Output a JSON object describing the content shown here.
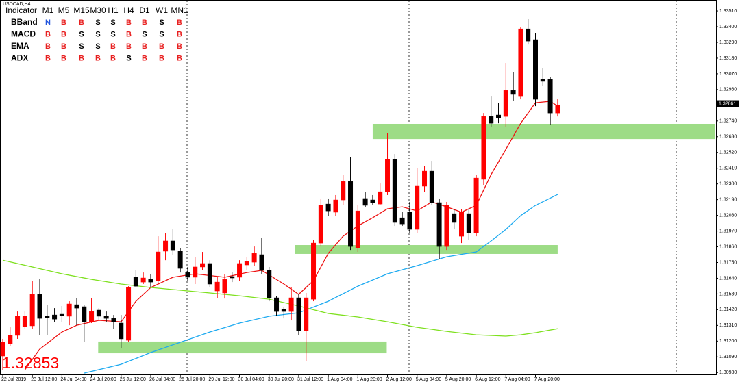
{
  "chart_data": {
    "type": "candlestick",
    "title": "USDCAD,H4",
    "price_display": "1.32853",
    "up_color": "#ff0000",
    "down_color": "#000000",
    "zone_color": "#9ddc86",
    "xlim": [
      -0.37,
      96.4
    ],
    "ylim": [
      1.30962,
      1.33563
    ],
    "yticks": [
      {
        "value": 1.3351,
        "label": "1.33510"
      },
      {
        "value": 1.334,
        "label": "1.33400"
      },
      {
        "value": 1.3329,
        "label": "1.33290"
      },
      {
        "value": 1.3318,
        "label": "1.33180"
      },
      {
        "value": 1.3307,
        "label": "1.33070"
      },
      {
        "value": 1.3296,
        "label": "1.32960"
      },
      {
        "value": 1.3274,
        "label": "1.32740"
      },
      {
        "value": 1.3263,
        "label": "1.32630"
      },
      {
        "value": 1.3252,
        "label": "1.32520"
      },
      {
        "value": 1.3241,
        "label": "1.32410"
      },
      {
        "value": 1.323,
        "label": "1.32300"
      },
      {
        "value": 1.3219,
        "label": "1.32190"
      },
      {
        "value": 1.3208,
        "label": "1.32080"
      },
      {
        "value": 1.3197,
        "label": "1.31970"
      },
      {
        "value": 1.3186,
        "label": "1.31860"
      },
      {
        "value": 1.3175,
        "label": "1.31750"
      },
      {
        "value": 1.3164,
        "label": "1.31640"
      },
      {
        "value": 1.3153,
        "label": "1.31530"
      },
      {
        "value": 1.3142,
        "label": "1.31420"
      },
      {
        "value": 1.3131,
        "label": "1.31310"
      },
      {
        "value": 1.312,
        "label": "1.31200"
      },
      {
        "value": 1.3109,
        "label": "1.31090"
      },
      {
        "value": 1.3098,
        "label": "1.30980"
      }
    ],
    "current_price": {
      "value": 1.32861,
      "label": "1.32861"
    },
    "categories": [
      "22 Jul 2019",
      null,
      null,
      null,
      "23 Jul 12:00",
      null,
      null,
      null,
      "24 Jul 04:00",
      null,
      null,
      null,
      "24 Jul 20:00",
      null,
      null,
      null,
      "25 Jul 12:00",
      null,
      null,
      null,
      "26 Jul 04:00",
      null,
      null,
      null,
      "26 Jul 20:00",
      null,
      null,
      null,
      "29 Jul 12:00",
      null,
      null,
      null,
      "30 Jul 04:00",
      null,
      null,
      null,
      "30 Jul 20:00",
      null,
      null,
      null,
      "31 Jul 12:00",
      null,
      null,
      null,
      "1 Aug 04:00",
      null,
      null,
      null,
      "1 Aug 20:00",
      null,
      null,
      null,
      "2 Aug 12:00",
      null,
      null,
      null,
      "5 Aug 04:00",
      null,
      null,
      null,
      "5 Aug 20:00",
      null,
      null,
      null,
      "6 Aug 12:00",
      null,
      null,
      null,
      "7 Aug 04:00",
      null,
      null,
      null,
      "7 Aug 20:00",
      null,
      null,
      null
    ],
    "ohlc": [
      [
        1.31096,
        1.31216,
        1.31,
        1.31192
      ],
      [
        1.31182,
        1.31297,
        1.31168,
        1.3124
      ],
      [
        1.3124,
        1.31407,
        1.31216,
        1.31374
      ],
      [
        1.31302,
        1.31407,
        1.31287,
        1.31374
      ],
      [
        1.31307,
        1.31623,
        1.31287,
        1.31527
      ],
      [
        1.31527,
        1.31637,
        1.3124,
        1.31359
      ],
      [
        1.31374,
        1.31455,
        1.3124,
        1.31364
      ],
      [
        1.31383,
        1.31431,
        1.31335,
        1.31354
      ],
      [
        1.31388,
        1.31446,
        1.31335,
        1.31378
      ],
      [
        1.31374,
        1.31479,
        1.31311,
        1.3146
      ],
      [
        1.31455,
        1.31503,
        1.31311,
        1.31431
      ],
      [
        1.31441,
        1.31455,
        1.31192,
        1.31335
      ],
      [
        1.31335,
        1.31503,
        1.31326,
        1.31407
      ],
      [
        1.31417,
        1.31431,
        1.31345,
        1.31374
      ],
      [
        1.31374,
        1.31407,
        1.31335,
        1.31359
      ],
      [
        1.31359,
        1.31383,
        1.31287,
        1.31335
      ],
      [
        1.31326,
        1.31383,
        1.31153,
        1.31216
      ],
      [
        1.31206,
        1.31584,
        1.31192,
        1.31575
      ],
      [
        1.31647,
        1.31695,
        1.31575,
        1.31584
      ],
      [
        1.31613,
        1.3168,
        1.31599,
        1.31642
      ],
      [
        1.31632,
        1.31671,
        1.31575,
        1.31613
      ],
      [
        1.31623,
        1.31934,
        1.31599,
        1.31824
      ],
      [
        1.31829,
        1.31958,
        1.31766,
        1.31901
      ],
      [
        1.31901,
        1.31982,
        1.31805,
        1.31838
      ],
      [
        1.31829,
        1.31853,
        1.3168,
        1.31709
      ],
      [
        1.3168,
        1.31719,
        1.31623,
        1.31647
      ],
      [
        1.31647,
        1.3179,
        1.31599,
        1.31719
      ],
      [
        1.31719,
        1.31824,
        1.31695,
        1.31743
      ],
      [
        1.31743,
        1.31766,
        1.31575,
        1.31599
      ],
      [
        1.31551,
        1.31647,
        1.31503,
        1.31613
      ],
      [
        1.31537,
        1.31671,
        1.31498,
        1.31632
      ],
      [
        1.31652,
        1.3168,
        1.31613,
        1.31642
      ],
      [
        1.31647,
        1.31766,
        1.31623,
        1.31743
      ],
      [
        1.31733,
        1.3179,
        1.31695,
        1.31757
      ],
      [
        1.31752,
        1.31862,
        1.31728,
        1.31814
      ],
      [
        1.31805,
        1.3192,
        1.31671,
        1.31695
      ],
      [
        1.31695,
        1.31719,
        1.31479,
        1.31503
      ],
      [
        1.31503,
        1.31517,
        1.31374,
        1.31407
      ],
      [
        1.31422,
        1.31441,
        1.31359,
        1.31407
      ],
      [
        1.31407,
        1.31575,
        1.31345,
        1.31503
      ],
      [
        1.31503,
        1.31527,
        1.3124,
        1.31273
      ],
      [
        1.31273,
        1.31537,
        1.31058,
        1.31503
      ],
      [
        1.31493,
        1.3191,
        1.31479,
        1.31886
      ],
      [
        1.31886,
        1.32198,
        1.31862,
        1.3215
      ],
      [
        1.32159,
        1.32198,
        1.32078,
        1.32111
      ],
      [
        1.32102,
        1.32222,
        1.32078,
        1.32188
      ],
      [
        1.32188,
        1.32365,
        1.3215,
        1.32317
      ],
      [
        1.32317,
        1.32485,
        1.31838,
        1.31862
      ],
      [
        1.31853,
        1.3215,
        1.31824,
        1.32111
      ],
      [
        1.32198,
        1.32245,
        1.3214,
        1.3215
      ],
      [
        1.32188,
        1.32222,
        1.3215,
        1.32169
      ],
      [
        1.32159,
        1.32303,
        1.3215,
        1.32245
      ],
      [
        1.32245,
        1.32653,
        1.32222,
        1.32471
      ],
      [
        1.32471,
        1.32509,
        1.32006,
        1.3203
      ],
      [
        1.32063,
        1.32102,
        1.32006,
        1.3202
      ],
      [
        1.32102,
        1.32174,
        1.31958,
        1.31982
      ],
      [
        1.31982,
        1.32413,
        1.31958,
        1.32284
      ],
      [
        1.32284,
        1.32423,
        1.32245,
        1.32389
      ],
      [
        1.32389,
        1.32461,
        1.3215,
        1.32169
      ],
      [
        1.32169,
        1.32198,
        1.31776,
        1.31862
      ],
      [
        1.31862,
        1.32174,
        1.31838,
        1.3215
      ],
      [
        1.32092,
        1.32126,
        1.31982,
        1.3203
      ],
      [
        1.31934,
        1.32126,
        1.31886,
        1.32102
      ],
      [
        1.32092,
        1.32126,
        1.3191,
        1.31958
      ],
      [
        1.31958,
        1.32365,
        1.31934,
        1.32341
      ],
      [
        1.32332,
        1.32796,
        1.32293,
        1.32772
      ],
      [
        1.32772,
        1.32916,
        1.32701,
        1.32724
      ],
      [
        1.32782,
        1.32868,
        1.32724,
        1.32763
      ],
      [
        1.32772,
        1.33146,
        1.32701,
        1.32954
      ],
      [
        1.32954,
        1.33084,
        1.32878,
        1.32926
      ],
      [
        1.32916,
        1.33395,
        1.32892,
        1.33385
      ],
      [
        1.33385,
        1.33453,
        1.33275,
        1.33299
      ],
      [
        1.33309,
        1.33357,
        1.32844,
        1.32892
      ],
      [
        1.33031,
        1.33108,
        1.32988,
        1.33017
      ],
      [
        1.33031,
        1.3305,
        1.32715,
        1.32796
      ],
      [
        1.32796,
        1.32892,
        1.32772,
        1.32853
      ]
    ],
    "overlays": [
      {
        "color": "#ee1111",
        "x": [
          3,
          5,
          8,
          10,
          13,
          16,
          18,
          20,
          23,
          26,
          30,
          33,
          35,
          38,
          40,
          42,
          44,
          46,
          48,
          50,
          52,
          54,
          56,
          58,
          60,
          62,
          64,
          66,
          68,
          70,
          72,
          74,
          75
        ],
        "values": [
          1.31,
          1.31144,
          1.31264,
          1.31311,
          1.31345,
          1.31335,
          1.31479,
          1.31575,
          1.31647,
          1.31671,
          1.31647,
          1.3168,
          1.31695,
          1.31599,
          1.31527,
          1.31623,
          1.31814,
          1.31934,
          1.32006,
          1.32063,
          1.32126,
          1.3214,
          1.32111,
          1.32174,
          1.3214,
          1.32102,
          1.3215,
          1.32365,
          1.32542,
          1.32724,
          1.32868,
          1.32878,
          1.32844
        ]
      },
      {
        "color": "#1eaaf0",
        "x": [
          11,
          16,
          20,
          24,
          28,
          32,
          36,
          40,
          44,
          48,
          52,
          56,
          60,
          64,
          66,
          68,
          70,
          72,
          75
        ],
        "values": [
          1.30976,
          1.31038,
          1.3112,
          1.31192,
          1.31264,
          1.31326,
          1.31374,
          1.31398,
          1.31479,
          1.31584,
          1.31671,
          1.31728,
          1.3179,
          1.31824,
          1.31901,
          1.31982,
          1.32078,
          1.3215,
          1.32226
        ]
      },
      {
        "color": "#7ee01e",
        "x": [
          0,
          4,
          8,
          12,
          16,
          20,
          24,
          28,
          32,
          36,
          40,
          44,
          48,
          52,
          56,
          60,
          64,
          68,
          70,
          72,
          75
        ],
        "values": [
          1.31766,
          1.31719,
          1.31671,
          1.31632,
          1.31599,
          1.31575,
          1.31556,
          1.31537,
          1.31517,
          1.31493,
          1.31446,
          1.31393,
          1.31369,
          1.31335,
          1.31297,
          1.31268,
          1.31244,
          1.31235,
          1.31244,
          1.31259,
          1.31287
        ]
      }
    ],
    "zones": [
      {
        "x": [
          50,
          98.6
        ],
        "y": [
          1.32614,
          1.3272
        ]
      },
      {
        "x": [
          39.5,
          75
        ],
        "y": [
          1.3181,
          1.31872
        ]
      },
      {
        "x": [
          12.9,
          51.9
        ],
        "y": [
          1.31115,
          1.31197
        ]
      }
    ]
  },
  "indicator_table": {
    "header": [
      "Indicator",
      "M1",
      "M5",
      "M15",
      "M30",
      "H1",
      "H4",
      "D1",
      "W1",
      "MN1"
    ],
    "rows": [
      [
        "BBand",
        "N",
        "B",
        "B",
        "S",
        "S",
        "B",
        "B",
        "S",
        "B"
      ],
      [
        "MACD",
        "B",
        "B",
        "S",
        "S",
        "S",
        "B",
        "S",
        "S",
        "B"
      ],
      [
        "EMA",
        "B",
        "B",
        "S",
        "S",
        "B",
        "B",
        "B",
        "B",
        "B"
      ],
      [
        "ADX",
        "B",
        "B",
        "B",
        "B",
        "B",
        "S",
        "B",
        "B",
        "B"
      ]
    ],
    "signal_colors": {
      "B": "#e82020",
      "S": "#000000",
      "N": "#2255dd"
    }
  }
}
